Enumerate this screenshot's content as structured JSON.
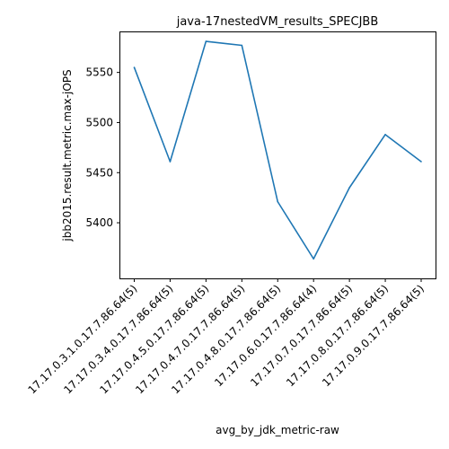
{
  "chart_data": {
    "type": "line",
    "title": "java-17nestedVM_results_SPECJBB",
    "xlabel": "avg_by_jdk_metric-raw",
    "ylabel": "jbb2015.result.metric.max-jOPS",
    "categories": [
      "17.17.0.3.1.0.17.7.86.64(5)",
      "17.17.0.3.4.0.17.7.86.64(5)",
      "17.17.0.4.5.0.17.7.86.64(5)",
      "17.17.0.4.7.0.17.7.86.64(5)",
      "17.17.0.4.8.0.17.7.86.64(5)",
      "17.17.0.6.0.17.7.86.64(4)",
      "17.17.0.7.0.17.7.86.64(5)",
      "17.17.0.8.0.17.7.86.64(5)",
      "17.17.0.9.0.17.7.86.64(5)"
    ],
    "values": [
      5555,
      5461,
      5581,
      5577,
      5421,
      5364,
      5435,
      5488,
      5461
    ],
    "yticks": [
      5400,
      5450,
      5500,
      5550
    ],
    "ylim": [
      5344.5,
      5590
    ],
    "grid": false,
    "line_color": "#1f77b4"
  }
}
